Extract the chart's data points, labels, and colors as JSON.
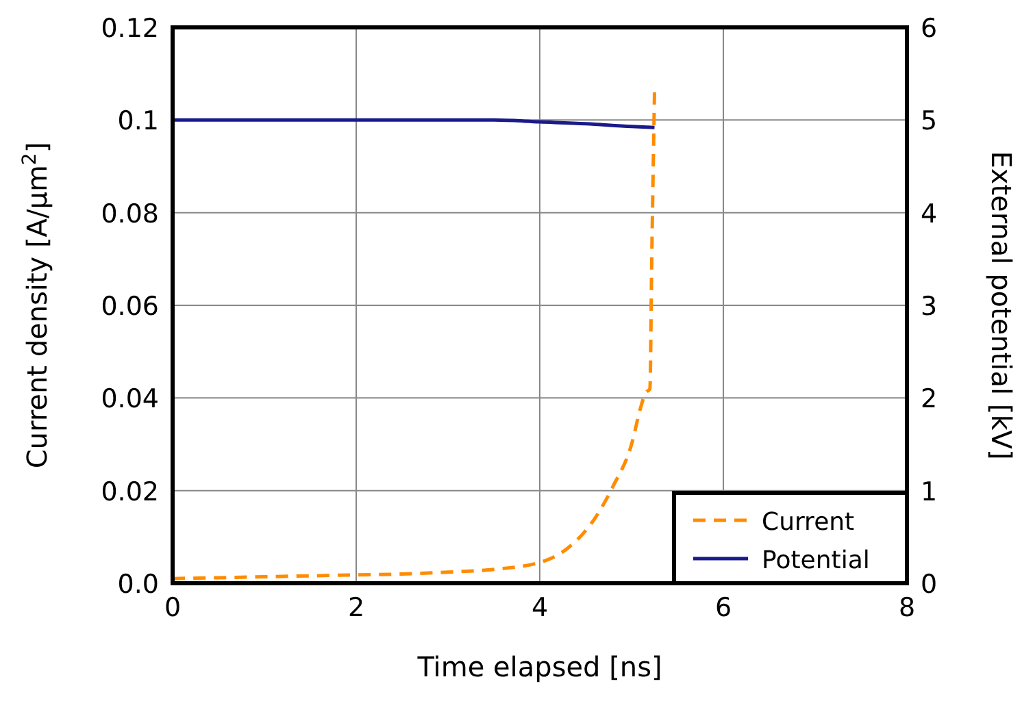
{
  "chart_data": {
    "type": "line",
    "xlabel": "Time elapsed [ns]",
    "ylabel": "Current density [A/μm$^{2}$]",
    "y2label": "External potential [kV]",
    "xlim": [
      0,
      8
    ],
    "xticks": [
      0,
      2,
      4,
      6,
      8
    ],
    "ylim": [
      0,
      0.12
    ],
    "yticks": [
      {
        "value": 0,
        "label": "0.0"
      },
      0.02,
      0.04,
      0.06,
      0.08,
      0.1,
      0.12
    ],
    "y2lim": [
      0,
      6
    ],
    "y2ticks": [
      0,
      1,
      2,
      3,
      4,
      5,
      6
    ],
    "grid": true,
    "legend": "bottom right",
    "series": [
      {
        "name": "Current",
        "color": "#ff8c00",
        "line_style": "dashed",
        "x": [
          0,
          0.5,
          1,
          1.5,
          2,
          2.5,
          3,
          3.5,
          4,
          4.3,
          4.6,
          4.8,
          5.0,
          5.1,
          5.15,
          5.2,
          5.22,
          5.25
        ],
        "values": [
          0.001,
          0.0012,
          0.0014,
          0.0016,
          0.0018,
          0.002,
          0.0024,
          0.003,
          0.0045,
          0.0075,
          0.014,
          0.021,
          0.03,
          0.038,
          0.041,
          0.042,
          0.07,
          0.106
        ]
      },
      {
        "name": "Potential",
        "color": "#1a1a8c",
        "line_style": "solid",
        "axis": "y2",
        "x": [
          0,
          1,
          2,
          3,
          3.5,
          4,
          4.5,
          5,
          5.25
        ],
        "values": [
          5,
          5,
          5,
          5,
          5,
          4.98,
          4.96,
          4.93,
          4.92
        ]
      }
    ]
  }
}
